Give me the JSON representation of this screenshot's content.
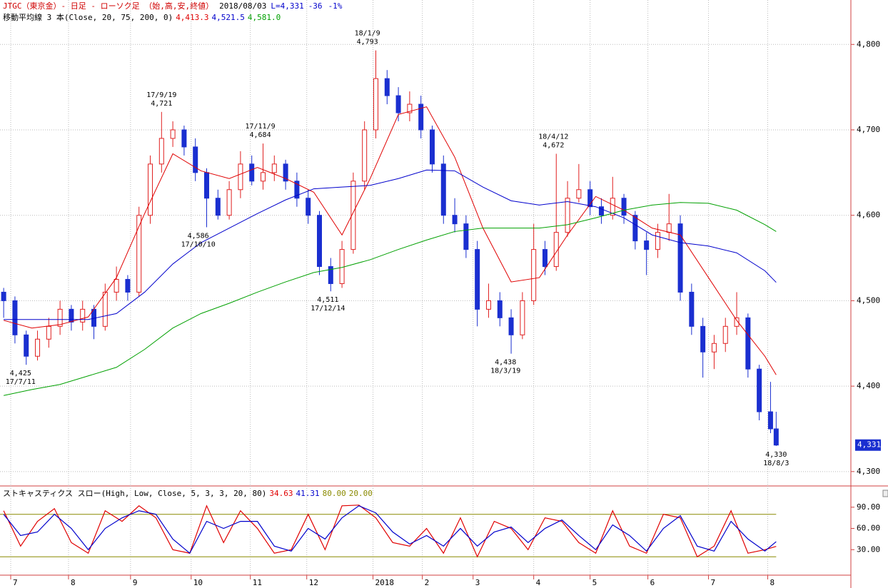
{
  "header": {
    "title": "JTGC（東京金）- 日足 - ローソク足 （始,高,安,終値）",
    "date": "2018/08/03",
    "last": "L=4,331",
    "change": "-36",
    "change_pct": "-1%"
  },
  "chart_data": [
    {
      "type": "candlestick",
      "ma_label": "移動平均線 3 本(Close, 20, 75, 200, 0)",
      "xlim": [
        -1.3,
        300.5
      ],
      "xticks": [
        {
          "value": 2.5,
          "label": "7"
        },
        {
          "value": 23,
          "label": "8"
        },
        {
          "value": 45,
          "label": "9"
        },
        {
          "value": 66.5,
          "label": "10"
        },
        {
          "value": 87.5,
          "label": "11"
        },
        {
          "value": 107.5,
          "label": "12"
        },
        {
          "value": 131,
          "label": "2018"
        },
        {
          "value": 148.5,
          "label": "2"
        },
        {
          "value": 166.5,
          "label": "3"
        },
        {
          "value": 188,
          "label": "4"
        },
        {
          "value": 208,
          "label": "5"
        },
        {
          "value": 228.5,
          "label": "6"
        },
        {
          "value": 250,
          "label": "7"
        },
        {
          "value": 271,
          "label": "8"
        }
      ],
      "ylim": [
        4284,
        4852
      ],
      "yticks": [
        {
          "value": 4300,
          "label": "4,300"
        },
        {
          "value": 4400,
          "label": "4,400"
        },
        {
          "value": 4500,
          "label": "4,500"
        },
        {
          "value": 4600,
          "label": "4,600"
        },
        {
          "value": 4700,
          "label": "4,700"
        },
        {
          "value": 4800,
          "label": "4,800"
        }
      ],
      "grid": true,
      "up_color": "#e02020",
      "down_color": "#1a2fd0",
      "x": [
        0,
        4,
        8,
        12,
        16,
        20,
        24,
        28,
        32,
        36,
        40,
        44,
        48,
        52,
        56,
        60,
        64,
        68,
        72,
        76,
        80,
        84,
        88,
        92,
        96,
        100,
        104,
        108,
        112,
        116,
        120,
        124,
        128,
        132,
        136,
        140,
        144,
        148,
        152,
        156,
        160,
        164,
        168,
        172,
        176,
        180,
        184,
        188,
        192,
        196,
        200,
        204,
        208,
        212,
        216,
        220,
        224,
        228,
        232,
        236,
        240,
        244,
        248,
        252,
        256,
        260,
        264,
        268,
        272,
        274
      ],
      "ohlc": [
        [
          4510,
          4515,
          4480,
          4500
        ],
        [
          4500,
          4505,
          4450,
          4460
        ],
        [
          4460,
          4465,
          4425,
          4435
        ],
        [
          4435,
          4465,
          4430,
          4455
        ],
        [
          4455,
          4480,
          4445,
          4470
        ],
        [
          4470,
          4500,
          4460,
          4490
        ],
        [
          4490,
          4495,
          4465,
          4475
        ],
        [
          4475,
          4500,
          4465,
          4490
        ],
        [
          4490,
          4495,
          4455,
          4470
        ],
        [
          4470,
          4520,
          4465,
          4510
        ],
        [
          4510,
          4540,
          4500,
          4525
        ],
        [
          4525,
          4530,
          4500,
          4510
        ],
        [
          4510,
          4610,
          4505,
          4600
        ],
        [
          4600,
          4670,
          4590,
          4660
        ],
        [
          4660,
          4721,
          4650,
          4690
        ],
        [
          4690,
          4710,
          4680,
          4700
        ],
        [
          4700,
          4705,
          4670,
          4680
        ],
        [
          4680,
          4690,
          4640,
          4650
        ],
        [
          4650,
          4655,
          4586,
          4620
        ],
        [
          4620,
          4630,
          4595,
          4600
        ],
        [
          4600,
          4640,
          4595,
          4630
        ],
        [
          4630,
          4675,
          4620,
          4660
        ],
        [
          4660,
          4670,
          4635,
          4640
        ],
        [
          4640,
          4684,
          4630,
          4650
        ],
        [
          4650,
          4670,
          4640,
          4660
        ],
        [
          4660,
          4665,
          4630,
          4640
        ],
        [
          4640,
          4650,
          4610,
          4620
        ],
        [
          4620,
          4630,
          4590,
          4600
        ],
        [
          4600,
          4605,
          4530,
          4540
        ],
        [
          4540,
          4550,
          4511,
          4520
        ],
        [
          4520,
          4570,
          4515,
          4560
        ],
        [
          4560,
          4650,
          4555,
          4640
        ],
        [
          4640,
          4710,
          4630,
          4700
        ],
        [
          4700,
          4793,
          4690,
          4760
        ],
        [
          4760,
          4770,
          4730,
          4740
        ],
        [
          4740,
          4750,
          4710,
          4720
        ],
        [
          4720,
          4745,
          4710,
          4730
        ],
        [
          4730,
          4740,
          4690,
          4700
        ],
        [
          4700,
          4705,
          4650,
          4660
        ],
        [
          4660,
          4670,
          4590,
          4600
        ],
        [
          4600,
          4620,
          4580,
          4590
        ],
        [
          4590,
          4600,
          4550,
          4560
        ],
        [
          4560,
          4570,
          4470,
          4490
        ],
        [
          4490,
          4520,
          4480,
          4500
        ],
        [
          4500,
          4510,
          4470,
          4480
        ],
        [
          4480,
          4490,
          4438,
          4460
        ],
        [
          4460,
          4510,
          4455,
          4500
        ],
        [
          4500,
          4590,
          4495,
          4560
        ],
        [
          4560,
          4570,
          4530,
          4540
        ],
        [
          4540,
          4672,
          4535,
          4580
        ],
        [
          4580,
          4640,
          4575,
          4620
        ],
        [
          4620,
          4660,
          4615,
          4630
        ],
        [
          4630,
          4640,
          4600,
          4610
        ],
        [
          4610,
          4620,
          4590,
          4600
        ],
        [
          4600,
          4645,
          4595,
          4620
        ],
        [
          4620,
          4625,
          4590,
          4600
        ],
        [
          4600,
          4605,
          4560,
          4570
        ],
        [
          4570,
          4580,
          4530,
          4560
        ],
        [
          4560,
          4590,
          4550,
          4580
        ],
        [
          4580,
          4625,
          4570,
          4590
        ],
        [
          4590,
          4600,
          4500,
          4510
        ],
        [
          4510,
          4520,
          4460,
          4470
        ],
        [
          4470,
          4480,
          4410,
          4440
        ],
        [
          4440,
          4460,
          4420,
          4450
        ],
        [
          4450,
          4480,
          4440,
          4470
        ],
        [
          4470,
          4510,
          4460,
          4480
        ],
        [
          4480,
          4485,
          4410,
          4420
        ],
        [
          4420,
          4425,
          4360,
          4370
        ],
        [
          4370,
          4405,
          4345,
          4350
        ],
        [
          4350,
          4370,
          4330,
          4331
        ]
      ],
      "ma_x": [
        0,
        10,
        20,
        30,
        40,
        50,
        60,
        70,
        80,
        90,
        100,
        110,
        120,
        130,
        140,
        150,
        160,
        170,
        180,
        190,
        200,
        210,
        220,
        230,
        240,
        250,
        260,
        270,
        274
      ],
      "ma_series": [
        {
          "color": "#e00000",
          "last_label": "4,413.3",
          "values": [
            4477,
            4468,
            4472,
            4481,
            4527,
            4602,
            4672,
            4652,
            4643,
            4656,
            4643,
            4627,
            4577,
            4643,
            4718,
            4727,
            4668,
            4585,
            4522,
            4527,
            4577,
            4622,
            4606,
            4585,
            4577,
            4527,
            4477,
            4435,
            4413.3
          ]
        },
        {
          "color": "#0000cc",
          "last_label": "4,521.5",
          "values": [
            4478,
            4478,
            4478,
            4478,
            4485,
            4510,
            4543,
            4568,
            4585,
            4602,
            4618,
            4631,
            4633,
            4635,
            4643,
            4653,
            4652,
            4633,
            4617,
            4612,
            4616,
            4610,
            4597,
            4577,
            4568,
            4564,
            4556,
            4535,
            4521.5
          ]
        },
        {
          "color": "#00a000",
          "last_label": "4,581.0",
          "values": [
            4389,
            4396,
            4402,
            4412,
            4422,
            4443,
            4468,
            4485,
            4497,
            4510,
            4522,
            4533,
            4539,
            4548,
            4560,
            4571,
            4581,
            4585,
            4585,
            4585,
            4589,
            4597,
            4606,
            4612,
            4615,
            4614,
            4606,
            4589,
            4581
          ]
        }
      ],
      "last_price": {
        "value": 4331,
        "label": "4,331"
      },
      "annotations": [
        {
          "x": 6,
          "value": 4425,
          "label": "4,425",
          "date": "17/7/11",
          "position": "below"
        },
        {
          "x": 56,
          "value": 4721,
          "label": "4,721",
          "date": "17/9/19",
          "position": "above"
        },
        {
          "x": 69,
          "value": 4586,
          "label": "4,586",
          "date": "17/10/10",
          "position": "below"
        },
        {
          "x": 91,
          "value": 4684,
          "label": "4,684",
          "date": "17/11/9",
          "position": "above"
        },
        {
          "x": 115,
          "value": 4511,
          "label": "4,511",
          "date": "17/12/14",
          "position": "below"
        },
        {
          "x": 129,
          "value": 4793,
          "label": "4,793",
          "date": "18/1/9",
          "position": "above"
        },
        {
          "x": 178,
          "value": 4438,
          "label": "4,438",
          "date": "18/3/19",
          "position": "below"
        },
        {
          "x": 195,
          "value": 4672,
          "label": "4,672",
          "date": "18/4/12",
          "position": "above"
        },
        {
          "x": 274,
          "value": 4330,
          "label": "4,330",
          "date": "18/8/3",
          "position": "below"
        }
      ]
    },
    {
      "type": "stochastic",
      "title": "ストキャスティクス スロー(High, Low, Close, 5, 3, 3, 20, 80)",
      "xlim": [
        -1.3,
        300.5
      ],
      "ylim": [
        -5,
        117
      ],
      "yticks": [
        {
          "value": 30,
          "label": "30.00"
        },
        {
          "value": 60,
          "label": "60.00"
        },
        {
          "value": 90,
          "label": "90.00"
        }
      ],
      "levels": [
        {
          "value": 80,
          "label": "80.00",
          "color": "#8a8a00"
        },
        {
          "value": 20,
          "label": "20.00",
          "color": "#8a8a00"
        }
      ],
      "x": [
        0,
        6,
        12,
        18,
        24,
        30,
        36,
        42,
        48,
        54,
        60,
        66,
        72,
        78,
        84,
        90,
        96,
        102,
        108,
        114,
        120,
        126,
        132,
        138,
        144,
        150,
        156,
        162,
        168,
        174,
        180,
        186,
        192,
        198,
        204,
        210,
        216,
        222,
        228,
        234,
        240,
        246,
        252,
        258,
        264,
        270,
        274
      ],
      "series": [
        {
          "color": "#e00000",
          "values": [
            85,
            35,
            70,
            88,
            40,
            25,
            85,
            70,
            92,
            75,
            30,
            25,
            92,
            40,
            85,
            60,
            25,
            30,
            80,
            30,
            92,
            93,
            75,
            40,
            35,
            60,
            25,
            75,
            20,
            70,
            60,
            30,
            75,
            70,
            40,
            25,
            85,
            35,
            25,
            80,
            75,
            20,
            35,
            85,
            25,
            30,
            34.63
          ]
        },
        {
          "color": "#0000cc",
          "values": [
            80,
            50,
            55,
            80,
            60,
            30,
            60,
            75,
            85,
            80,
            45,
            25,
            70,
            60,
            70,
            70,
            35,
            28,
            60,
            45,
            75,
            92,
            82,
            55,
            38,
            50,
            35,
            60,
            35,
            55,
            62,
            40,
            60,
            72,
            50,
            30,
            65,
            50,
            28,
            60,
            78,
            35,
            28,
            70,
            45,
            28,
            41.31
          ]
        }
      ]
    }
  ]
}
